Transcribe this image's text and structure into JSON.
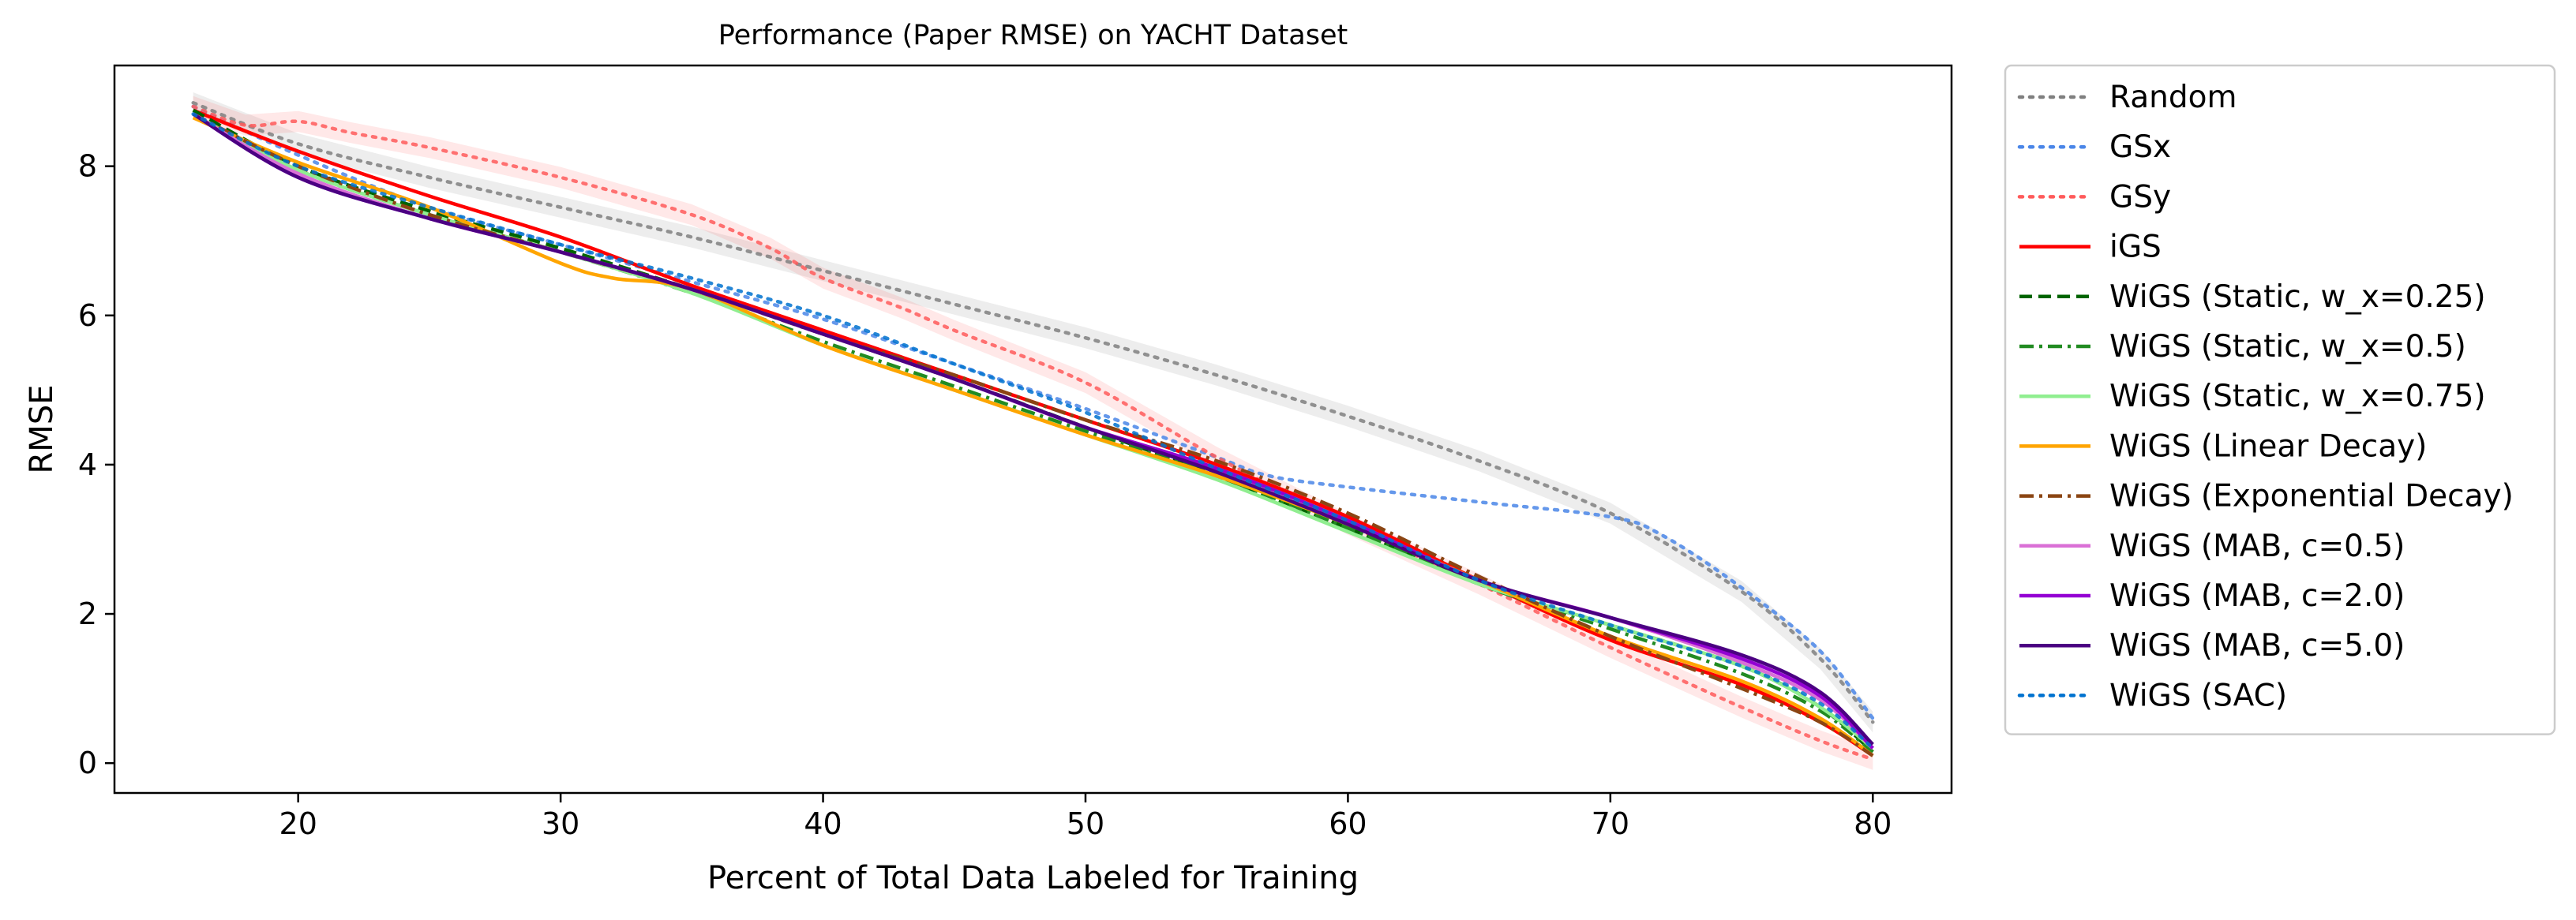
{
  "chart_data": {
    "type": "line",
    "title": "Performance (Paper RMSE) on YACHT Dataset",
    "xlabel": "Percent of Total Data Labeled for Training",
    "ylabel": "RMSE",
    "xlim": [
      13,
      83
    ],
    "ylim": [
      -0.4,
      9.35
    ],
    "xticks": [
      20,
      30,
      40,
      50,
      60,
      70,
      80
    ],
    "yticks": [
      0,
      2,
      4,
      6,
      8
    ],
    "grid": false,
    "legend_position": "outside-right",
    "series": [
      {
        "name": "Random",
        "color": "#7f7f7f",
        "dash": "dotted",
        "band": true,
        "x": [
          16,
          20,
          25,
          30,
          35,
          40,
          45,
          50,
          55,
          60,
          65,
          70,
          75,
          78,
          80
        ],
        "y": [
          8.85,
          8.3,
          7.85,
          7.45,
          7.05,
          6.6,
          6.15,
          5.7,
          5.2,
          4.65,
          4.05,
          3.35,
          2.3,
          1.4,
          0.55
        ]
      },
      {
        "name": "GSx",
        "color": "#4a86e8",
        "dash": "dotted",
        "band": false,
        "x": [
          16,
          20,
          25,
          30,
          35,
          40,
          45,
          50,
          55,
          57,
          60,
          65,
          70,
          72,
          75,
          78,
          80
        ],
        "y": [
          8.8,
          8.15,
          7.45,
          6.95,
          6.45,
          5.95,
          5.35,
          4.75,
          4.1,
          3.85,
          3.7,
          3.5,
          3.3,
          3.05,
          2.35,
          1.5,
          0.6
        ]
      },
      {
        "name": "GSy",
        "color": "#ff5a5a",
        "dash": "dotted",
        "band": true,
        "x": [
          16,
          18,
          20,
          22,
          25,
          30,
          35,
          38,
          40,
          43,
          45,
          50,
          55,
          60,
          65,
          70,
          75,
          78,
          80
        ],
        "y": [
          8.8,
          8.55,
          8.6,
          8.45,
          8.25,
          7.85,
          7.35,
          6.9,
          6.5,
          6.1,
          5.8,
          5.1,
          4.1,
          3.2,
          2.4,
          1.55,
          0.75,
          0.3,
          0.05
        ]
      },
      {
        "name": "iGS",
        "color": "#ff0000",
        "dash": "solid",
        "band": false,
        "x": [
          16,
          20,
          25,
          30,
          35,
          40,
          45,
          50,
          55,
          60,
          65,
          70,
          75,
          78,
          80
        ],
        "y": [
          8.75,
          8.2,
          7.6,
          7.05,
          6.4,
          5.8,
          5.2,
          4.6,
          4.0,
          3.3,
          2.45,
          1.65,
          1.05,
          0.55,
          0.1
        ]
      },
      {
        "name": "WiGS (Static, w_x=0.25)",
        "color": "#006400",
        "dash": "dashed",
        "band": false,
        "x": [
          16,
          20,
          25,
          30,
          35,
          40,
          45,
          50,
          55,
          60,
          65,
          70,
          75,
          78,
          80
        ],
        "y": [
          8.75,
          8.0,
          7.4,
          6.9,
          6.35,
          5.75,
          5.15,
          4.5,
          3.85,
          3.15,
          2.4,
          1.85,
          1.3,
          0.75,
          0.15
        ]
      },
      {
        "name": "WiGS (Static, w_x=0.5)",
        "color": "#228b22",
        "dash": "dashdot",
        "band": false,
        "x": [
          16,
          20,
          25,
          30,
          35,
          40,
          45,
          50,
          55,
          60,
          65,
          70,
          75,
          78,
          80
        ],
        "y": [
          8.7,
          7.95,
          7.35,
          6.85,
          6.3,
          5.65,
          5.05,
          4.45,
          3.85,
          3.15,
          2.4,
          1.8,
          1.2,
          0.7,
          0.15
        ]
      },
      {
        "name": "WiGS (Static, w_x=0.75)",
        "color": "#90ee90",
        "dash": "solid",
        "band": false,
        "x": [
          16,
          20,
          25,
          30,
          35,
          40,
          45,
          50,
          55,
          60,
          65,
          70,
          75,
          78,
          80
        ],
        "y": [
          8.7,
          7.95,
          7.35,
          6.85,
          6.3,
          5.6,
          5.0,
          4.4,
          3.8,
          3.1,
          2.4,
          1.85,
          1.3,
          0.75,
          0.2
        ]
      },
      {
        "name": "WiGS (Linear Decay)",
        "color": "#ffa500",
        "dash": "solid",
        "band": false,
        "x": [
          16,
          20,
          25,
          30,
          32,
          35,
          40,
          45,
          50,
          55,
          60,
          65,
          70,
          75,
          78,
          80
        ],
        "y": [
          8.65,
          8.05,
          7.45,
          6.7,
          6.5,
          6.35,
          5.6,
          5.0,
          4.4,
          3.85,
          3.2,
          2.45,
          1.7,
          1.1,
          0.6,
          0.1
        ]
      },
      {
        "name": "WiGS (Exponential Decay)",
        "color": "#8b4513",
        "dash": "dashdot",
        "band": false,
        "x": [
          16,
          20,
          25,
          30,
          35,
          40,
          45,
          50,
          55,
          60,
          65,
          70,
          75,
          78,
          80
        ],
        "y": [
          8.7,
          8.0,
          7.35,
          6.85,
          6.35,
          5.75,
          5.2,
          4.6,
          4.05,
          3.35,
          2.5,
          1.7,
          1.0,
          0.55,
          0.1
        ]
      },
      {
        "name": "WiGS (MAB, c=0.5)",
        "color": "#da70d6",
        "dash": "solid",
        "band": false,
        "x": [
          16,
          20,
          25,
          30,
          35,
          40,
          45,
          50,
          55,
          60,
          65,
          70,
          75,
          78,
          80
        ],
        "y": [
          8.7,
          7.9,
          7.3,
          6.85,
          6.35,
          5.75,
          5.15,
          4.5,
          3.95,
          3.25,
          2.45,
          1.95,
          1.35,
          0.85,
          0.2
        ]
      },
      {
        "name": "WiGS (MAB, c=2.0)",
        "color": "#9400d3",
        "dash": "solid",
        "band": false,
        "x": [
          16,
          20,
          25,
          30,
          35,
          40,
          45,
          50,
          55,
          60,
          65,
          70,
          75,
          78,
          80
        ],
        "y": [
          8.7,
          7.85,
          7.3,
          6.85,
          6.35,
          5.75,
          5.15,
          4.5,
          3.95,
          3.25,
          2.45,
          1.95,
          1.4,
          0.9,
          0.2
        ]
      },
      {
        "name": "WiGS (MAB, c=5.0)",
        "color": "#4b0082",
        "dash": "solid",
        "band": false,
        "x": [
          16,
          20,
          25,
          30,
          35,
          40,
          45,
          50,
          55,
          60,
          65,
          70,
          75,
          78,
          80
        ],
        "y": [
          8.7,
          7.85,
          7.3,
          6.85,
          6.35,
          5.75,
          5.15,
          4.5,
          3.9,
          3.2,
          2.45,
          1.95,
          1.45,
          0.95,
          0.25
        ]
      },
      {
        "name": "WiGS (SAC)",
        "color": "#0072cf",
        "dash": "dotted",
        "band": false,
        "x": [
          16,
          20,
          25,
          30,
          35,
          40,
          45,
          50,
          55,
          60,
          65,
          70,
          75,
          78,
          80
        ],
        "y": [
          8.7,
          8.0,
          7.45,
          6.95,
          6.5,
          6.0,
          5.35,
          4.7,
          3.95,
          3.25,
          2.45,
          1.85,
          1.3,
          0.8,
          0.2
        ]
      }
    ]
  }
}
